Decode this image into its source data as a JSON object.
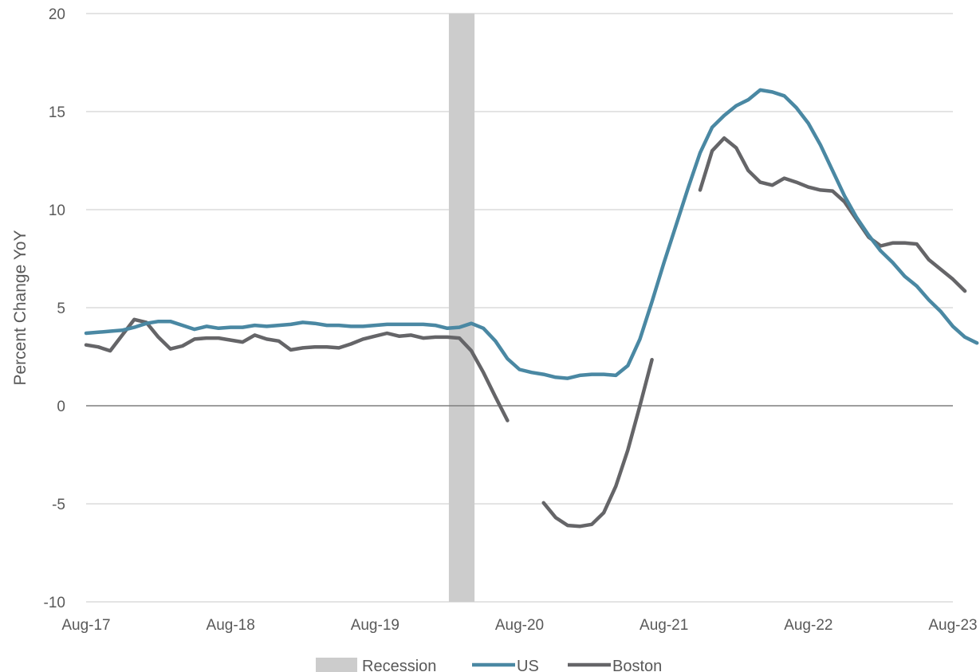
{
  "chart_data": {
    "type": "line",
    "title": "",
    "xlabel": "",
    "ylabel": "Percent Change YoY",
    "ylim": [
      -10,
      20
    ],
    "yticks": [
      -10,
      -5,
      0,
      5,
      10,
      15,
      20
    ],
    "ytick_labels": [
      "-10",
      "-5",
      "0",
      "5",
      "10",
      "15",
      "20"
    ],
    "xlim": [
      "2017-08",
      "2023-08"
    ],
    "x_tick_labels": [
      "Aug-17",
      "Aug-18",
      "Aug-19",
      "Aug-20",
      "Aug-21",
      "Aug-22",
      "Aug-23"
    ],
    "x_ticks": [
      "2017-08",
      "2018-08",
      "2019-08",
      "2020-08",
      "2021-08",
      "2022-08",
      "2023-08"
    ],
    "grid": "horizontal",
    "legend": "bottom",
    "recession": {
      "name": "Recession",
      "start": "2020-02",
      "end": "2020-04"
    },
    "series": [
      {
        "name": "US",
        "values": [
          [
            "2017-08",
            3.7
          ],
          [
            "2017-09",
            3.75
          ],
          [
            "2017-10",
            3.8
          ],
          [
            "2017-11",
            3.85
          ],
          [
            "2017-12",
            4.0
          ],
          [
            "2018-01",
            4.2
          ],
          [
            "2018-02",
            4.3
          ],
          [
            "2018-03",
            4.3
          ],
          [
            "2018-04",
            4.1
          ],
          [
            "2018-05",
            3.9
          ],
          [
            "2018-06",
            4.05
          ],
          [
            "2018-07",
            3.95
          ],
          [
            "2018-08",
            4.0
          ],
          [
            "2018-09",
            4.0
          ],
          [
            "2018-10",
            4.1
          ],
          [
            "2018-11",
            4.05
          ],
          [
            "2018-12",
            4.1
          ],
          [
            "2019-01",
            4.15
          ],
          [
            "2019-02",
            4.25
          ],
          [
            "2019-03",
            4.2
          ],
          [
            "2019-04",
            4.1
          ],
          [
            "2019-05",
            4.1
          ],
          [
            "2019-06",
            4.05
          ],
          [
            "2019-07",
            4.05
          ],
          [
            "2019-08",
            4.1
          ],
          [
            "2019-09",
            4.15
          ],
          [
            "2019-10",
            4.15
          ],
          [
            "2019-11",
            4.15
          ],
          [
            "2019-12",
            4.15
          ],
          [
            "2020-01",
            4.1
          ],
          [
            "2020-02",
            3.95
          ],
          [
            "2020-03",
            4.0
          ],
          [
            "2020-04",
            4.2
          ],
          [
            "2020-05",
            3.95
          ],
          [
            "2020-06",
            3.3
          ],
          [
            "2020-07",
            2.4
          ],
          [
            "2020-08",
            1.85
          ],
          [
            "2020-09",
            1.7
          ],
          [
            "2020-10",
            1.6
          ],
          [
            "2020-11",
            1.45
          ],
          [
            "2020-12",
            1.4
          ],
          [
            "2021-01",
            1.55
          ],
          [
            "2021-02",
            1.6
          ],
          [
            "2021-03",
            1.6
          ],
          [
            "2021-04",
            1.55
          ],
          [
            "2021-05",
            2.05
          ],
          [
            "2021-06",
            3.4
          ],
          [
            "2021-07",
            5.3
          ],
          [
            "2021-08",
            7.3
          ],
          [
            "2021-09",
            9.2
          ],
          [
            "2021-10",
            11.1
          ],
          [
            "2021-11",
            12.9
          ],
          [
            "2021-12",
            14.2
          ],
          [
            "2022-01",
            14.8
          ],
          [
            "2022-02",
            15.3
          ],
          [
            "2022-03",
            15.6
          ],
          [
            "2022-04",
            16.1
          ],
          [
            "2022-05",
            16.0
          ],
          [
            "2022-06",
            15.8
          ],
          [
            "2022-07",
            15.2
          ],
          [
            "2022-08",
            14.4
          ],
          [
            "2022-09",
            13.3
          ],
          [
            "2022-10",
            12.0
          ],
          [
            "2022-11",
            10.7
          ],
          [
            "2022-12",
            9.6
          ],
          [
            "2023-01",
            8.7
          ],
          [
            "2023-02",
            7.9
          ],
          [
            "2023-03",
            7.3
          ],
          [
            "2023-04",
            6.6
          ],
          [
            "2023-05",
            6.1
          ],
          [
            "2023-06",
            5.4
          ],
          [
            "2023-07",
            4.8
          ],
          [
            "2023-08",
            4.05
          ],
          [
            "2023-09",
            3.5
          ],
          [
            "2023-10",
            3.2
          ]
        ],
        "color": "#4a88a3"
      },
      {
        "name": "Boston",
        "color": "#656568",
        "segments": [
          [
            [
              "2017-08",
              3.1
            ],
            [
              "2017-09",
              3.0
            ],
            [
              "2017-10",
              2.8
            ],
            [
              "2017-11",
              3.6
            ],
            [
              "2017-12",
              4.4
            ],
            [
              "2018-01",
              4.25
            ],
            [
              "2018-02",
              3.5
            ],
            [
              "2018-03",
              2.9
            ],
            [
              "2018-04",
              3.05
            ],
            [
              "2018-05",
              3.4
            ],
            [
              "2018-06",
              3.45
            ],
            [
              "2018-07",
              3.45
            ],
            [
              "2018-08",
              3.35
            ],
            [
              "2018-09",
              3.25
            ],
            [
              "2018-10",
              3.6
            ],
            [
              "2018-11",
              3.4
            ],
            [
              "2018-12",
              3.3
            ],
            [
              "2019-01",
              2.85
            ],
            [
              "2019-02",
              2.95
            ],
            [
              "2019-03",
              3.0
            ],
            [
              "2019-04",
              3.0
            ],
            [
              "2019-05",
              2.95
            ],
            [
              "2019-06",
              3.15
            ],
            [
              "2019-07",
              3.4
            ],
            [
              "2019-08",
              3.55
            ],
            [
              "2019-09",
              3.7
            ],
            [
              "2019-10",
              3.55
            ],
            [
              "2019-11",
              3.6
            ],
            [
              "2019-12",
              3.45
            ],
            [
              "2020-01",
              3.5
            ],
            [
              "2020-02",
              3.5
            ],
            [
              "2020-03",
              3.45
            ],
            [
              "2020-04",
              2.8
            ],
            [
              "2020-05",
              1.7
            ],
            [
              "2020-06",
              0.45
            ],
            [
              "2020-07",
              -0.75
            ]
          ],
          [
            [
              "2020-10",
              -4.95
            ],
            [
              "2020-11",
              -5.7
            ],
            [
              "2020-12",
              -6.1
            ],
            [
              "2021-01",
              -6.15
            ],
            [
              "2021-02",
              -6.05
            ],
            [
              "2021-03",
              -5.45
            ],
            [
              "2021-04",
              -4.1
            ],
            [
              "2021-05",
              -2.25
            ],
            [
              "2021-06",
              0.0
            ],
            [
              "2021-07",
              2.35
            ]
          ],
          [
            [
              "2021-11",
              11.0
            ],
            [
              "2021-12",
              13.0
            ],
            [
              "2022-01",
              13.65
            ],
            [
              "2022-02",
              13.15
            ],
            [
              "2022-03",
              12.0
            ],
            [
              "2022-04",
              11.4
            ],
            [
              "2022-05",
              11.25
            ],
            [
              "2022-06",
              11.6
            ],
            [
              "2022-07",
              11.4
            ],
            [
              "2022-08",
              11.15
            ],
            [
              "2022-09",
              11.0
            ],
            [
              "2022-10",
              10.95
            ],
            [
              "2022-11",
              10.4
            ],
            [
              "2022-12",
              9.5
            ],
            [
              "2023-01",
              8.6
            ],
            [
              "2023-02",
              8.15
            ],
            [
              "2023-03",
              8.3
            ],
            [
              "2023-04",
              8.3
            ],
            [
              "2023-05",
              8.25
            ],
            [
              "2023-06",
              7.45
            ],
            [
              "2023-07",
              6.95
            ],
            [
              "2023-08",
              6.45
            ],
            [
              "2023-09",
              5.85
            ]
          ]
        ]
      }
    ],
    "colors": {
      "grid": "#dcdcdc",
      "zero_line": "#7f7f7f",
      "recession": "#cccccc",
      "text": "#595959"
    }
  }
}
